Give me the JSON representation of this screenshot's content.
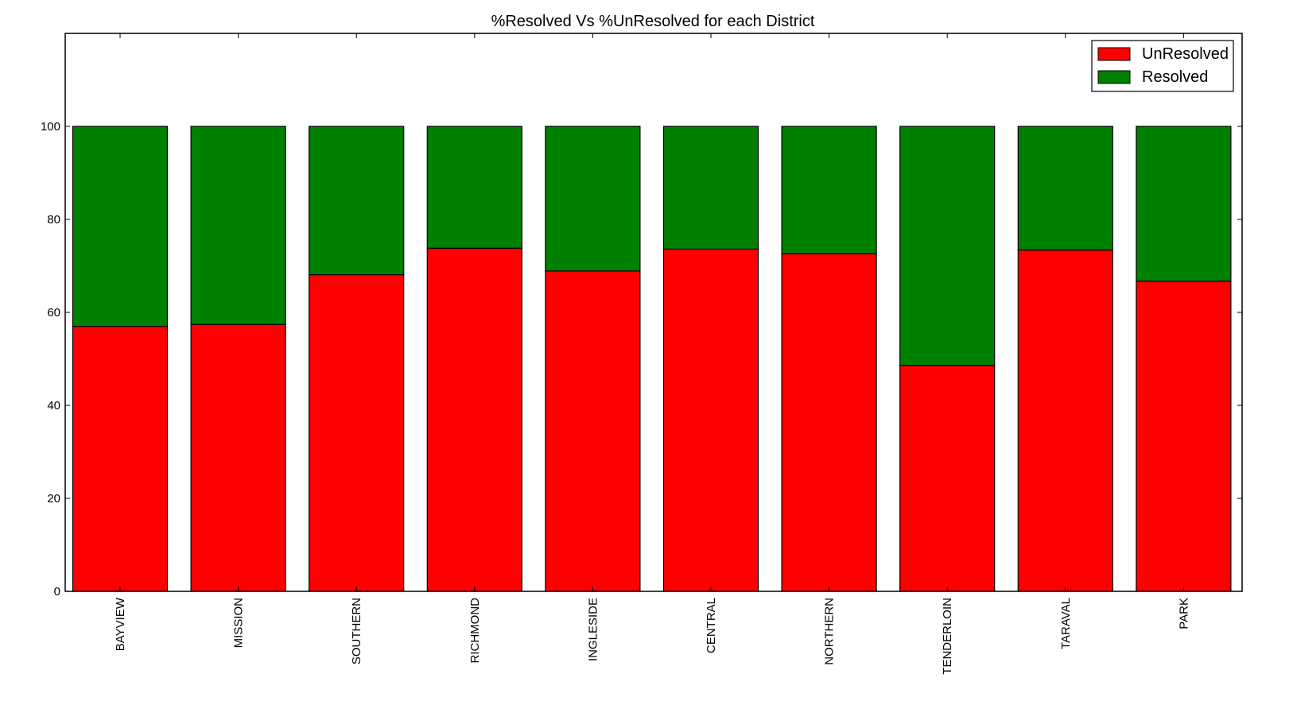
{
  "chart_data": {
    "type": "bar",
    "stacked": true,
    "title": "%Resolved Vs %UnResolved for each District",
    "xlabel": "",
    "ylabel": "",
    "categories": [
      "BAYVIEW",
      "MISSION",
      "SOUTHERN",
      "RICHMOND",
      "INGLESIDE",
      "CENTRAL",
      "NORTHERN",
      "TENDERLOIN",
      "TARAVAL",
      "PARK"
    ],
    "series": [
      {
        "name": "UnResolved",
        "color": "#ff0000",
        "values": [
          57.0,
          57.4,
          68.1,
          73.8,
          68.9,
          73.6,
          72.6,
          48.6,
          73.4,
          66.7
        ]
      },
      {
        "name": "Resolved",
        "color": "#008000",
        "values": [
          43.0,
          42.6,
          31.9,
          26.2,
          31.1,
          26.4,
          27.4,
          51.4,
          26.6,
          33.3
        ]
      }
    ],
    "ylim": [
      0,
      120
    ],
    "yticks": [
      "0",
      "20",
      "40",
      "60",
      "80",
      "100"
    ],
    "grid": false,
    "legend_position": "top-right"
  }
}
